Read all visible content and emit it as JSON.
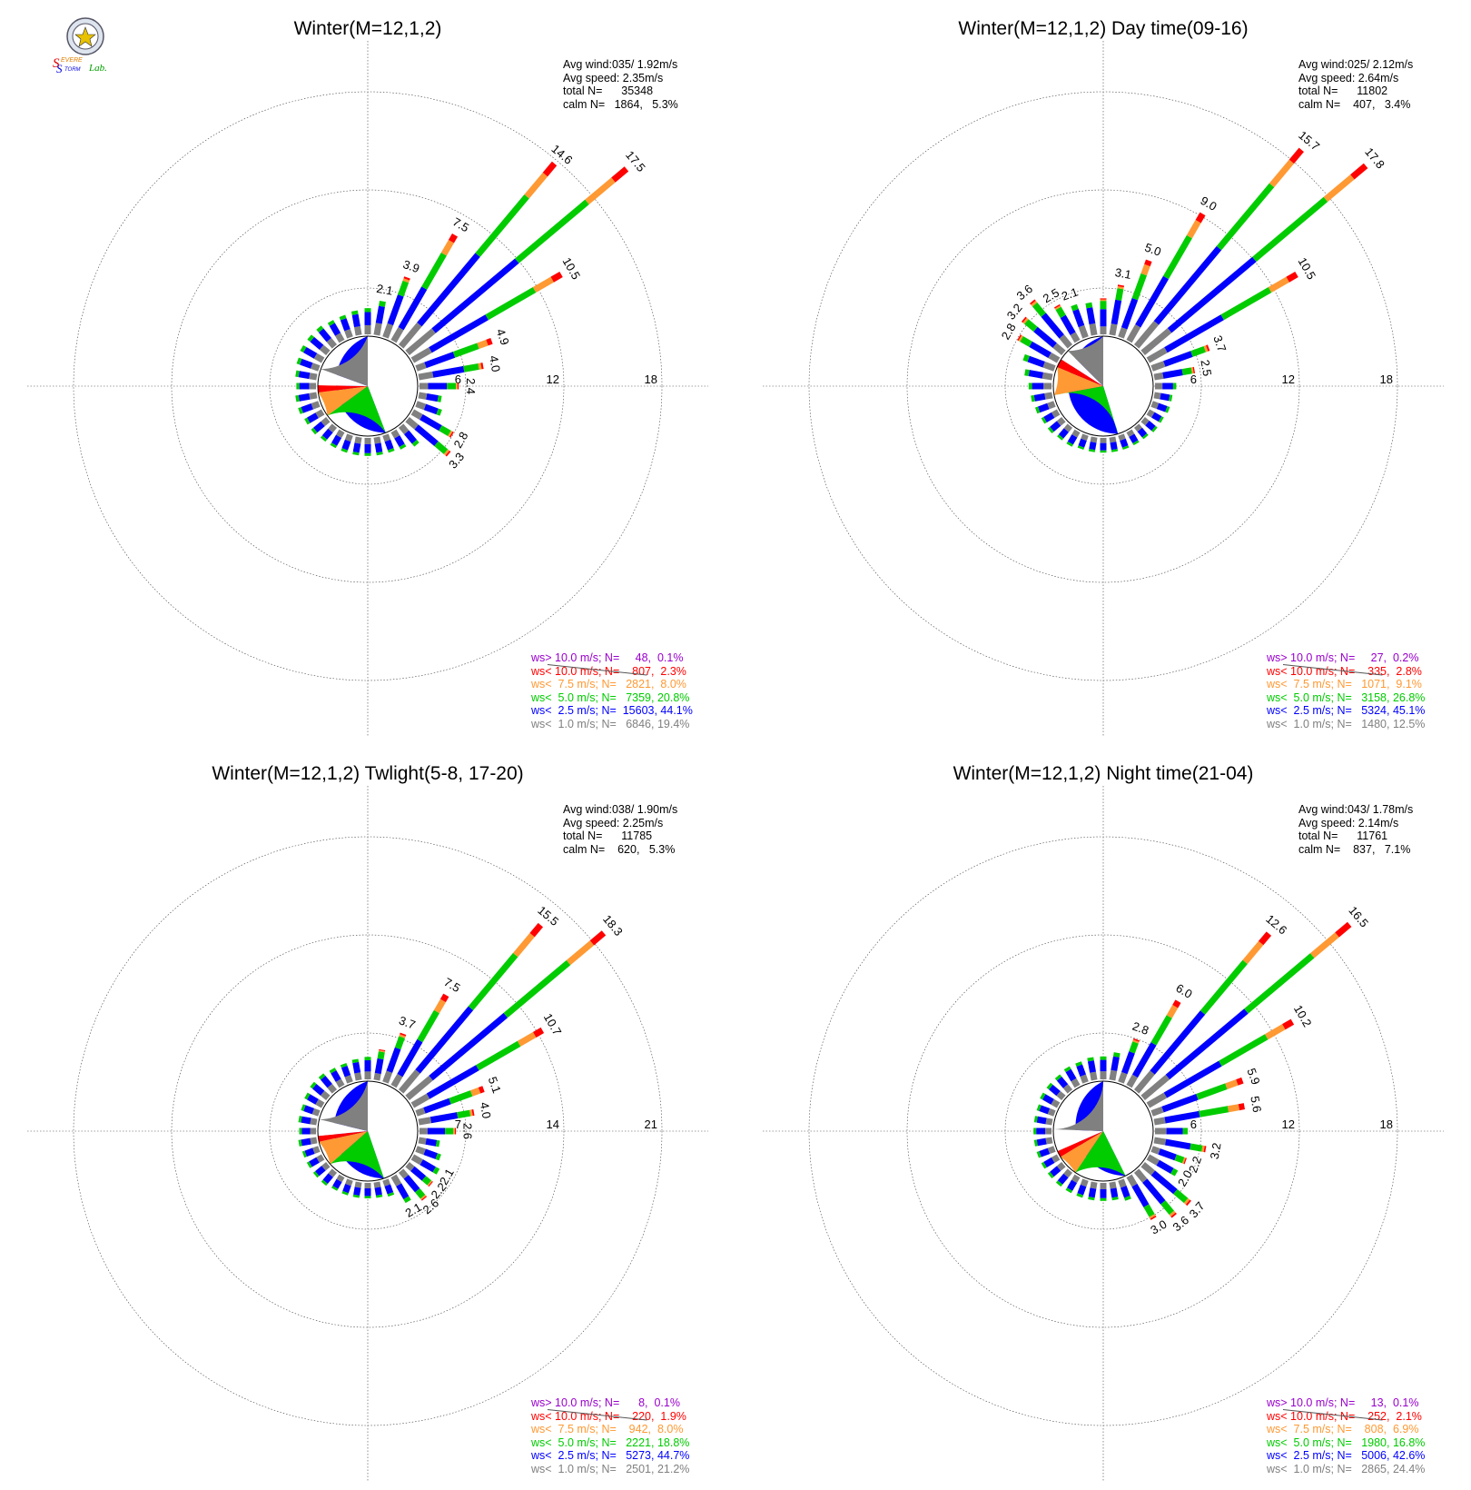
{
  "logo": {
    "text_parts": [
      "S",
      "EVERE",
      "S",
      "TORM",
      "Lab."
    ],
    "colors": {
      "S1": "#e00000",
      "EVERE": "#e08000",
      "S2": "#0000e0",
      "TORM": "#0000e0",
      "Lab": "#00a000"
    }
  },
  "colors": {
    "gt10": "#9900cc",
    "lt10": "#ff0000",
    "lt7_5": "#ff9933",
    "lt5": "#00cc00",
    "lt2_5": "#0000ff",
    "lt1": "#808080",
    "calm_pie_white": "#ffffff"
  },
  "chart_data": [
    {
      "type": "wind-rose",
      "title": "Winter(M=12,1,2)",
      "rings": [
        6,
        12,
        18
      ],
      "stats": [
        "Avg wind:035/ 1.92m/s",
        "Avg speed: 2.35m/s",
        "total N=      35348",
        "calm N=   1864,   5.3%"
      ],
      "legend": [
        {
          "key": "gt10",
          "label": "ws> 10.0 m/s; N=     48,  0.1%"
        },
        {
          "key": "lt10",
          "label": "ws< 10.0 m/s; N=    807,  2.3%"
        },
        {
          "key": "lt7_5",
          "label": "ws<  7.5 m/s; N=   2821,  8.0%"
        },
        {
          "key": "lt5",
          "label": "ws<  5.0 m/s; N=   7359, 20.8%"
        },
        {
          "key": "lt2_5",
          "label": "ws<  2.5 m/s; N=  15603, 44.1%"
        },
        {
          "key": "lt1",
          "label": "ws<  1.0 m/s; N=   6846, 19.4%"
        }
      ],
      "pie": [
        44.1,
        20.8,
        8.0,
        2.3,
        5.3,
        19.4
      ],
      "directions": [
        {
          "dir": 0,
          "total": 1.6
        },
        {
          "dir": 10,
          "total": 2.1,
          "label": "2.1"
        },
        {
          "dir": 20,
          "total": 3.9,
          "label": "3.9"
        },
        {
          "dir": 30,
          "total": 7.5,
          "label": "7.5"
        },
        {
          "dir": 40,
          "total": 14.6,
          "label": "14.6"
        },
        {
          "dir": 50,
          "total": 17.5,
          "label": "17.5"
        },
        {
          "dir": 60,
          "total": 10.5,
          "label": "10.5"
        },
        {
          "dir": 70,
          "total": 4.9,
          "label": "4.9"
        },
        {
          "dir": 80,
          "total": 4.0,
          "label": "4.0"
        },
        {
          "dir": 90,
          "total": 2.4,
          "label": "2.4"
        },
        {
          "dir": 100,
          "total": 1.4
        },
        {
          "dir": 110,
          "total": 1.6
        },
        {
          "dir": 120,
          "total": 2.8,
          "label": "2.8"
        },
        {
          "dir": 130,
          "total": 3.3,
          "label": "3.3"
        },
        {
          "dir": 140,
          "total": 1.5
        },
        {
          "dir": 150,
          "total": 1.2
        },
        {
          "dir": 160,
          "total": 1.1
        },
        {
          "dir": 170,
          "total": 1.1
        },
        {
          "dir": 180,
          "total": 1.1
        },
        {
          "dir": 190,
          "total": 1.1
        },
        {
          "dir": 200,
          "total": 1.1
        },
        {
          "dir": 210,
          "total": 1.1
        },
        {
          "dir": 220,
          "total": 1.1
        },
        {
          "dir": 230,
          "total": 1.2
        },
        {
          "dir": 240,
          "total": 1.2
        },
        {
          "dir": 250,
          "total": 1.3
        },
        {
          "dir": 260,
          "total": 1.3
        },
        {
          "dir": 270,
          "total": 1.2
        },
        {
          "dir": 280,
          "total": 1.3
        },
        {
          "dir": 290,
          "total": 1.4
        },
        {
          "dir": 300,
          "total": 1.5
        },
        {
          "dir": 310,
          "total": 1.5
        },
        {
          "dir": 320,
          "total": 1.5
        },
        {
          "dir": 330,
          "total": 1.4
        },
        {
          "dir": 340,
          "total": 1.4
        },
        {
          "dir": 350,
          "total": 1.5
        }
      ]
    },
    {
      "type": "wind-rose",
      "title": "Winter(M=12,1,2) Day time(09-16)",
      "rings": [
        6,
        12,
        18
      ],
      "stats": [
        "Avg wind:025/ 2.12m/s",
        "Avg speed: 2.64m/s",
        "total N=      11802",
        "calm N=    407,   3.4%"
      ],
      "legend": [
        {
          "key": "gt10",
          "label": "ws> 10.0 m/s; N=     27,  0.2%"
        },
        {
          "key": "lt10",
          "label": "ws< 10.0 m/s; N=    335,  2.8%"
        },
        {
          "key": "lt7_5",
          "label": "ws<  7.5 m/s; N=   1071,  9.1%"
        },
        {
          "key": "lt5",
          "label": "ws<  5.0 m/s; N=   3158, 26.8%"
        },
        {
          "key": "lt2_5",
          "label": "ws<  2.5 m/s; N=   5324, 45.1%"
        },
        {
          "key": "lt1",
          "label": "ws<  1.0 m/s; N=   1480, 12.5%"
        }
      ],
      "pie": [
        45.1,
        26.8,
        9.1,
        2.8,
        3.4,
        12.5
      ],
      "directions": [
        {
          "dir": 0,
          "total": 2.2
        },
        {
          "dir": 10,
          "total": 3.1,
          "label": "3.1"
        },
        {
          "dir": 20,
          "total": 5.0,
          "label": "5.0"
        },
        {
          "dir": 30,
          "total": 9.0,
          "label": "9.0"
        },
        {
          "dir": 40,
          "total": 15.7,
          "label": "15.7"
        },
        {
          "dir": 50,
          "total": 17.8,
          "label": "17.8"
        },
        {
          "dir": 60,
          "total": 10.5,
          "label": "10.5"
        },
        {
          "dir": 70,
          "total": 3.7,
          "label": "3.7"
        },
        {
          "dir": 80,
          "total": 2.5,
          "label": "2.5"
        },
        {
          "dir": 90,
          "total": 1.3
        },
        {
          "dir": 100,
          "total": 1.1
        },
        {
          "dir": 110,
          "total": 1.1
        },
        {
          "dir": 120,
          "total": 1.0
        },
        {
          "dir": 130,
          "total": 1.0
        },
        {
          "dir": 140,
          "total": 0.9
        },
        {
          "dir": 150,
          "total": 0.9
        },
        {
          "dir": 160,
          "total": 0.9
        },
        {
          "dir": 170,
          "total": 0.9
        },
        {
          "dir": 180,
          "total": 0.9
        },
        {
          "dir": 190,
          "total": 0.9
        },
        {
          "dir": 200,
          "total": 0.9
        },
        {
          "dir": 210,
          "total": 1.0
        },
        {
          "dir": 220,
          "total": 1.0
        },
        {
          "dir": 230,
          "total": 1.1
        },
        {
          "dir": 240,
          "total": 1.1
        },
        {
          "dir": 250,
          "total": 1.2
        },
        {
          "dir": 260,
          "total": 1.3
        },
        {
          "dir": 270,
          "total": 1.4
        },
        {
          "dir": 280,
          "total": 1.7
        },
        {
          "dir": 290,
          "total": 2.0
        },
        {
          "dir": 300,
          "total": 2.8,
          "label": "2.8"
        },
        {
          "dir": 310,
          "total": 3.2,
          "label": "3.2"
        },
        {
          "dir": 320,
          "total": 3.6,
          "label": "3.6"
        },
        {
          "dir": 330,
          "total": 2.5,
          "label": "2.5"
        },
        {
          "dir": 340,
          "total": 2.1,
          "label": "2.1"
        },
        {
          "dir": 350,
          "total": 2.0
        }
      ]
    },
    {
      "type": "wind-rose",
      "title": "Winter(M=12,1,2) Twlight(5-8, 17-20)",
      "rings": [
        7,
        14,
        21
      ],
      "stats": [
        "Avg wind:038/ 1.90m/s",
        "Avg speed: 2.25m/s",
        "total N=      11785",
        "calm N=    620,   5.3%"
      ],
      "legend": [
        {
          "key": "gt10",
          "label": "ws> 10.0 m/s; N=      8,  0.1%"
        },
        {
          "key": "lt10",
          "label": "ws< 10.0 m/s; N=    220,  1.9%"
        },
        {
          "key": "lt7_5",
          "label": "ws<  7.5 m/s; N=    942,  8.0%"
        },
        {
          "key": "lt5",
          "label": "ws<  5.0 m/s; N=   2221, 18.8%"
        },
        {
          "key": "lt2_5",
          "label": "ws<  2.5 m/s; N=   5273, 44.7%"
        },
        {
          "key": "lt1",
          "label": "ws<  1.0 m/s; N=   2501, 21.2%"
        }
      ],
      "pie": [
        44.7,
        18.8,
        8.0,
        1.9,
        5.3,
        21.2
      ],
      "directions": [
        {
          "dir": 0,
          "total": 1.6
        },
        {
          "dir": 10,
          "total": 2.2
        },
        {
          "dir": 20,
          "total": 3.7,
          "label": "3.7"
        },
        {
          "dir": 30,
          "total": 7.5,
          "label": "7.5"
        },
        {
          "dir": 40,
          "total": 15.5,
          "label": "15.5"
        },
        {
          "dir": 50,
          "total": 18.3,
          "label": "18.3"
        },
        {
          "dir": 60,
          "total": 10.7,
          "label": "10.7"
        },
        {
          "dir": 70,
          "total": 5.1,
          "label": "5.1"
        },
        {
          "dir": 80,
          "total": 4.0,
          "label": "4.0"
        },
        {
          "dir": 90,
          "total": 2.6,
          "label": "2.6"
        },
        {
          "dir": 100,
          "total": 1.5
        },
        {
          "dir": 110,
          "total": 1.8
        },
        {
          "dir": 120,
          "total": 2.1,
          "label": "2.1"
        },
        {
          "dir": 130,
          "total": 2.2,
          "label": "2.2"
        },
        {
          "dir": 140,
          "total": 2.6,
          "label": "2.6"
        },
        {
          "dir": 150,
          "total": 2.1,
          "label": "2.1"
        },
        {
          "dir": 160,
          "total": 1.2
        },
        {
          "dir": 170,
          "total": 1.1
        },
        {
          "dir": 180,
          "total": 1.1
        },
        {
          "dir": 190,
          "total": 1.1
        },
        {
          "dir": 200,
          "total": 1.1
        },
        {
          "dir": 210,
          "total": 1.1
        },
        {
          "dir": 220,
          "total": 1.2
        },
        {
          "dir": 230,
          "total": 1.2
        },
        {
          "dir": 240,
          "total": 1.2
        },
        {
          "dir": 250,
          "total": 1.2
        },
        {
          "dir": 260,
          "total": 1.3
        },
        {
          "dir": 270,
          "total": 1.2
        },
        {
          "dir": 280,
          "total": 1.3
        },
        {
          "dir": 290,
          "total": 1.3
        },
        {
          "dir": 300,
          "total": 1.4
        },
        {
          "dir": 310,
          "total": 1.5
        },
        {
          "dir": 320,
          "total": 1.5
        },
        {
          "dir": 330,
          "total": 1.4
        },
        {
          "dir": 340,
          "total": 1.4
        },
        {
          "dir": 350,
          "total": 1.5
        }
      ]
    },
    {
      "type": "wind-rose",
      "title": "Winter(M=12,1,2) Night time(21-04)",
      "rings": [
        6,
        12,
        18
      ],
      "stats": [
        "Avg wind:043/ 1.78m/s",
        "Avg speed: 2.14m/s",
        "total N=      11761",
        "calm N=    837,   7.1%"
      ],
      "legend": [
        {
          "key": "gt10",
          "label": "ws> 10.0 m/s; N=     13,  0.1%"
        },
        {
          "key": "lt10",
          "label": "ws< 10.0 m/s; N=    252,  2.1%"
        },
        {
          "key": "lt7_5",
          "label": "ws<  7.5 m/s; N=    808,  6.9%"
        },
        {
          "key": "lt5",
          "label": "ws<  5.0 m/s; N=   1980, 16.8%"
        },
        {
          "key": "lt2_5",
          "label": "ws<  2.5 m/s; N=   5006, 42.6%"
        },
        {
          "key": "lt1",
          "label": "ws<  1.0 m/s; N=   2865, 24.4%"
        }
      ],
      "pie": [
        42.6,
        16.8,
        6.9,
        2.1,
        7.1,
        24.4
      ],
      "directions": [
        {
          "dir": 0,
          "total": 1.4
        },
        {
          "dir": 10,
          "total": 1.7
        },
        {
          "dir": 20,
          "total": 2.8,
          "label": "2.8"
        },
        {
          "dir": 30,
          "total": 6.0,
          "label": "6.0"
        },
        {
          "dir": 40,
          "total": 12.6,
          "label": "12.6"
        },
        {
          "dir": 50,
          "total": 16.5,
          "label": "16.5"
        },
        {
          "dir": 60,
          "total": 10.2,
          "label": "10.2"
        },
        {
          "dir": 70,
          "total": 5.9,
          "label": "5.9"
        },
        {
          "dir": 80,
          "total": 5.6,
          "label": "5.6"
        },
        {
          "dir": 90,
          "total": 2.0
        },
        {
          "dir": 100,
          "total": 3.2,
          "label": "3.2"
        },
        {
          "dir": 110,
          "total": 2.2,
          "label": "2.2"
        },
        {
          "dir": 120,
          "total": 2.0,
          "label": "2.0"
        },
        {
          "dir": 130,
          "total": 3.7,
          "label": "3.7"
        },
        {
          "dir": 140,
          "total": 3.6,
          "label": "3.6"
        },
        {
          "dir": 150,
          "total": 3.0,
          "label": "3.0"
        },
        {
          "dir": 160,
          "total": 1.3
        },
        {
          "dir": 170,
          "total": 1.1
        },
        {
          "dir": 180,
          "total": 1.1
        },
        {
          "dir": 190,
          "total": 1.1
        },
        {
          "dir": 200,
          "total": 1.1
        },
        {
          "dir": 210,
          "total": 1.1
        },
        {
          "dir": 220,
          "total": 1.1
        },
        {
          "dir": 230,
          "total": 1.1
        },
        {
          "dir": 240,
          "total": 1.1
        },
        {
          "dir": 250,
          "total": 1.1
        },
        {
          "dir": 260,
          "total": 1.1
        },
        {
          "dir": 270,
          "total": 1.1
        },
        {
          "dir": 280,
          "total": 1.1
        },
        {
          "dir": 290,
          "total": 1.1
        },
        {
          "dir": 300,
          "total": 1.2
        },
        {
          "dir": 310,
          "total": 1.2
        },
        {
          "dir": 320,
          "total": 1.2
        },
        {
          "dir": 330,
          "total": 1.3
        },
        {
          "dir": 340,
          "total": 1.3
        },
        {
          "dir": 350,
          "total": 1.4
        }
      ]
    }
  ]
}
